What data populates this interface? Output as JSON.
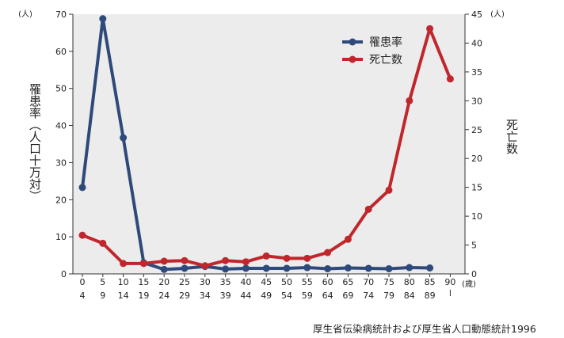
{
  "chart_data": {
    "type": "line",
    "categories_top": [
      "0",
      "5",
      "10",
      "15",
      "20",
      "25",
      "30",
      "35",
      "40",
      "45",
      "50",
      "55",
      "60",
      "65",
      "70",
      "75",
      "80",
      "85",
      "90"
    ],
    "categories_bottom": [
      "4",
      "9",
      "14",
      "19",
      "24",
      "29",
      "34",
      "39",
      "44",
      "49",
      "54",
      "59",
      "64",
      "69",
      "74",
      "79",
      "84",
      "89",
      ""
    ],
    "x_unit": "(歳)",
    "y_left": {
      "label": "罹患率（人口十万対）",
      "unit": "(人)",
      "min": 0,
      "max": 70,
      "ticks": [
        0,
        10,
        20,
        30,
        40,
        50,
        60,
        70
      ]
    },
    "y_right": {
      "label": "死亡数",
      "unit": "(人)",
      "min": 0,
      "max": 45,
      "ticks": [
        0,
        5,
        10,
        15,
        20,
        25,
        30,
        35,
        40,
        45
      ]
    },
    "series": [
      {
        "name": "罹患率",
        "axis": "left",
        "color": "#2e4a7a",
        "values": [
          23.3,
          68.8,
          36.7,
          3.0,
          1.2,
          1.5,
          2.0,
          1.3,
          1.5,
          1.5,
          1.5,
          1.7,
          1.4,
          1.6,
          1.5,
          1.4,
          1.7,
          1.6,
          null
        ]
      },
      {
        "name": "死亡数",
        "axis": "right",
        "color": "#c0272d",
        "values": [
          6.7,
          5.3,
          1.8,
          1.8,
          2.2,
          2.3,
          1.4,
          2.3,
          2.1,
          3.1,
          2.7,
          2.7,
          3.7,
          6.0,
          11.2,
          14.5,
          30.0,
          42.5,
          33.8
        ]
      }
    ],
    "grid": false,
    "legend_position": "top-right"
  },
  "source_text": "厚生省伝染病統計および厚生省人口動態統計1996"
}
